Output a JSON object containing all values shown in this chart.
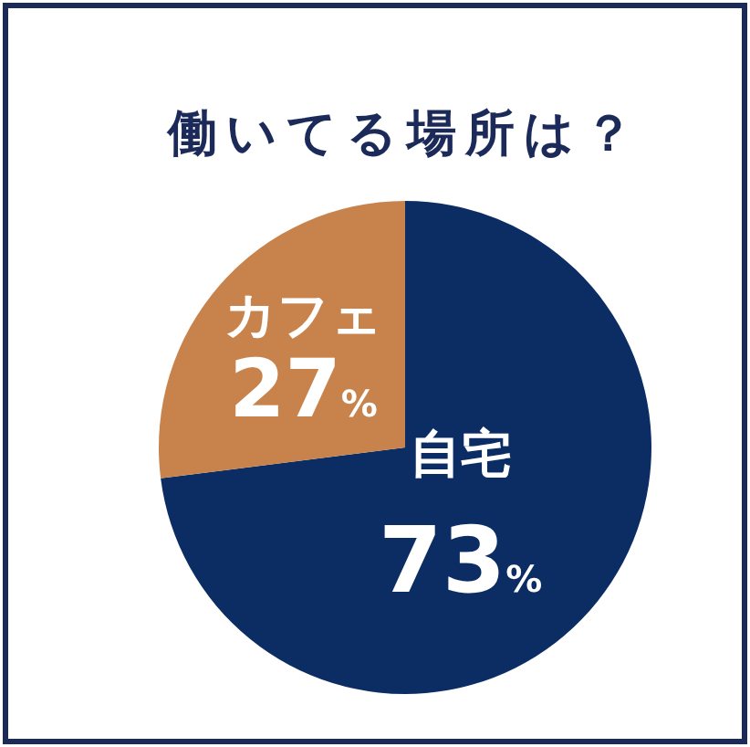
{
  "chart_data": {
    "type": "pie",
    "title": "働いてる場所は？",
    "categories": [
      "自宅",
      "カフェ"
    ],
    "values": [
      73,
      27
    ],
    "colors": [
      "#0b2d64",
      "#c8834c"
    ],
    "value_labels": [
      "73%",
      "27%"
    ]
  }
}
